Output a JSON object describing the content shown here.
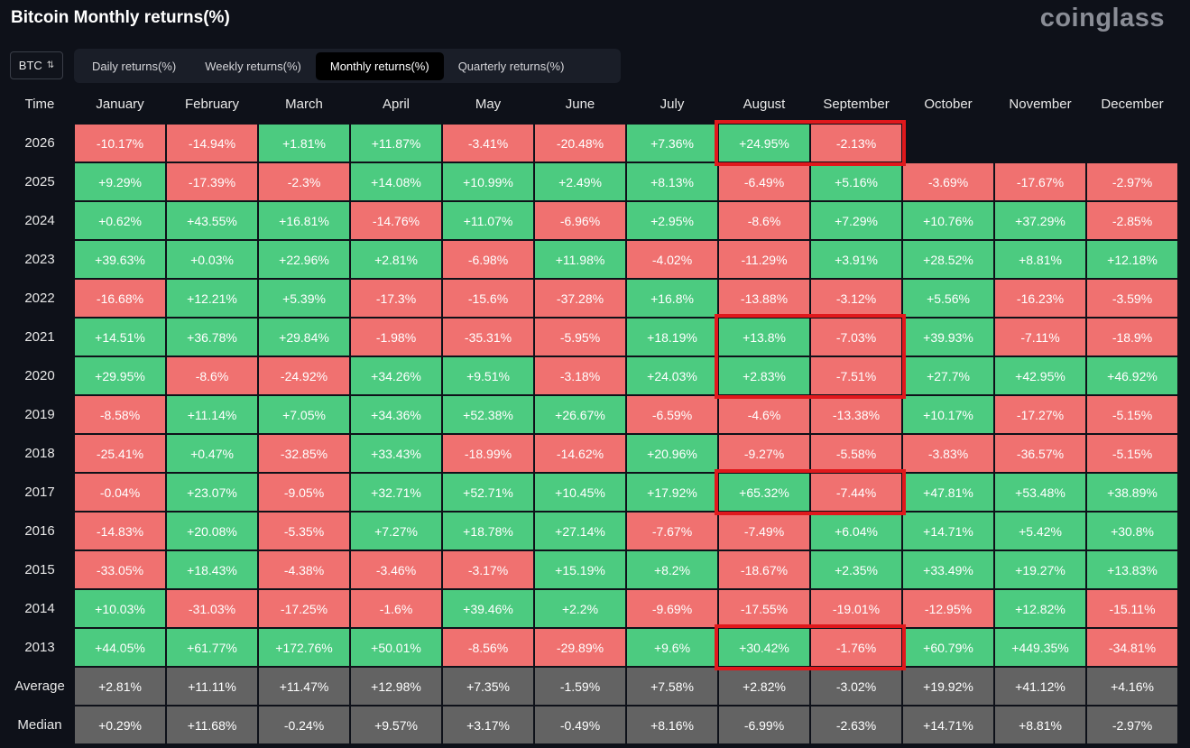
{
  "header": {
    "title": "Bitcoin Monthly returns(%)",
    "brand": "coinglass"
  },
  "controls": {
    "asset": "BTC",
    "tabs": [
      {
        "label": "Daily returns(%)",
        "active": false
      },
      {
        "label": "Weekly returns(%)",
        "active": false
      },
      {
        "label": "Monthly returns(%)",
        "active": true
      },
      {
        "label": "Quarterly returns(%)",
        "active": false
      }
    ]
  },
  "colors": {
    "positive": "#4ccb80",
    "negative": "#f07170",
    "summary": "#636363",
    "highlight": "#e0181c",
    "background": "#0e1119"
  },
  "table": {
    "columns": [
      "Time",
      "January",
      "February",
      "March",
      "April",
      "May",
      "June",
      "July",
      "August",
      "September",
      "October",
      "November",
      "December"
    ],
    "rows": [
      {
        "label": "2026",
        "cells": [
          "-10.17%",
          "-14.94%",
          "+1.81%",
          "+11.87%",
          "-3.41%",
          "-20.48%",
          "+7.36%",
          "+24.95%",
          "-2.13%",
          "",
          "",
          ""
        ]
      },
      {
        "label": "2025",
        "cells": [
          "+9.29%",
          "-17.39%",
          "-2.3%",
          "+14.08%",
          "+10.99%",
          "+2.49%",
          "+8.13%",
          "-6.49%",
          "+5.16%",
          "-3.69%",
          "-17.67%",
          "-2.97%"
        ]
      },
      {
        "label": "2024",
        "cells": [
          "+0.62%",
          "+43.55%",
          "+16.81%",
          "-14.76%",
          "+11.07%",
          "-6.96%",
          "+2.95%",
          "-8.6%",
          "+7.29%",
          "+10.76%",
          "+37.29%",
          "-2.85%"
        ]
      },
      {
        "label": "2023",
        "cells": [
          "+39.63%",
          "+0.03%",
          "+22.96%",
          "+2.81%",
          "-6.98%",
          "+11.98%",
          "-4.02%",
          "-11.29%",
          "+3.91%",
          "+28.52%",
          "+8.81%",
          "+12.18%"
        ]
      },
      {
        "label": "2022",
        "cells": [
          "-16.68%",
          "+12.21%",
          "+5.39%",
          "-17.3%",
          "-15.6%",
          "-37.28%",
          "+16.8%",
          "-13.88%",
          "-3.12%",
          "+5.56%",
          "-16.23%",
          "-3.59%"
        ]
      },
      {
        "label": "2021",
        "cells": [
          "+14.51%",
          "+36.78%",
          "+29.84%",
          "-1.98%",
          "-35.31%",
          "-5.95%",
          "+18.19%",
          "+13.8%",
          "-7.03%",
          "+39.93%",
          "-7.11%",
          "-18.9%"
        ]
      },
      {
        "label": "2020",
        "cells": [
          "+29.95%",
          "-8.6%",
          "-24.92%",
          "+34.26%",
          "+9.51%",
          "-3.18%",
          "+24.03%",
          "+2.83%",
          "-7.51%",
          "+27.7%",
          "+42.95%",
          "+46.92%"
        ]
      },
      {
        "label": "2019",
        "cells": [
          "-8.58%",
          "+11.14%",
          "+7.05%",
          "+34.36%",
          "+52.38%",
          "+26.67%",
          "-6.59%",
          "-4.6%",
          "-13.38%",
          "+10.17%",
          "-17.27%",
          "-5.15%"
        ]
      },
      {
        "label": "2018",
        "cells": [
          "-25.41%",
          "+0.47%",
          "-32.85%",
          "+33.43%",
          "-18.99%",
          "-14.62%",
          "+20.96%",
          "-9.27%",
          "-5.58%",
          "-3.83%",
          "-36.57%",
          "-5.15%"
        ]
      },
      {
        "label": "2017",
        "cells": [
          "-0.04%",
          "+23.07%",
          "-9.05%",
          "+32.71%",
          "+52.71%",
          "+10.45%",
          "+17.92%",
          "+65.32%",
          "-7.44%",
          "+47.81%",
          "+53.48%",
          "+38.89%"
        ]
      },
      {
        "label": "2016",
        "cells": [
          "-14.83%",
          "+20.08%",
          "-5.35%",
          "+7.27%",
          "+18.78%",
          "+27.14%",
          "-7.67%",
          "-7.49%",
          "+6.04%",
          "+14.71%",
          "+5.42%",
          "+30.8%"
        ]
      },
      {
        "label": "2015",
        "cells": [
          "-33.05%",
          "+18.43%",
          "-4.38%",
          "-3.46%",
          "-3.17%",
          "+15.19%",
          "+8.2%",
          "-18.67%",
          "+2.35%",
          "+33.49%",
          "+19.27%",
          "+13.83%"
        ]
      },
      {
        "label": "2014",
        "cells": [
          "+10.03%",
          "-31.03%",
          "-17.25%",
          "-1.6%",
          "+39.46%",
          "+2.2%",
          "-9.69%",
          "-17.55%",
          "-19.01%",
          "-12.95%",
          "+12.82%",
          "-15.11%"
        ]
      },
      {
        "label": "2013",
        "cells": [
          "+44.05%",
          "+61.77%",
          "+172.76%",
          "+50.01%",
          "-8.56%",
          "-29.89%",
          "+9.6%",
          "+30.42%",
          "-1.76%",
          "+60.79%",
          "+449.35%",
          "-34.81%"
        ]
      }
    ],
    "summary": [
      {
        "label": "Average",
        "cells": [
          "+2.81%",
          "+11.11%",
          "+11.47%",
          "+12.98%",
          "+7.35%",
          "-1.59%",
          "+7.58%",
          "+2.82%",
          "-3.02%",
          "+19.92%",
          "+41.12%",
          "+4.16%"
        ]
      },
      {
        "label": "Median",
        "cells": [
          "+0.29%",
          "+11.68%",
          "-0.24%",
          "+9.57%",
          "+3.17%",
          "-0.49%",
          "+8.16%",
          "-6.99%",
          "-2.63%",
          "+14.71%",
          "+8.81%",
          "-2.97%"
        ]
      }
    ]
  }
}
